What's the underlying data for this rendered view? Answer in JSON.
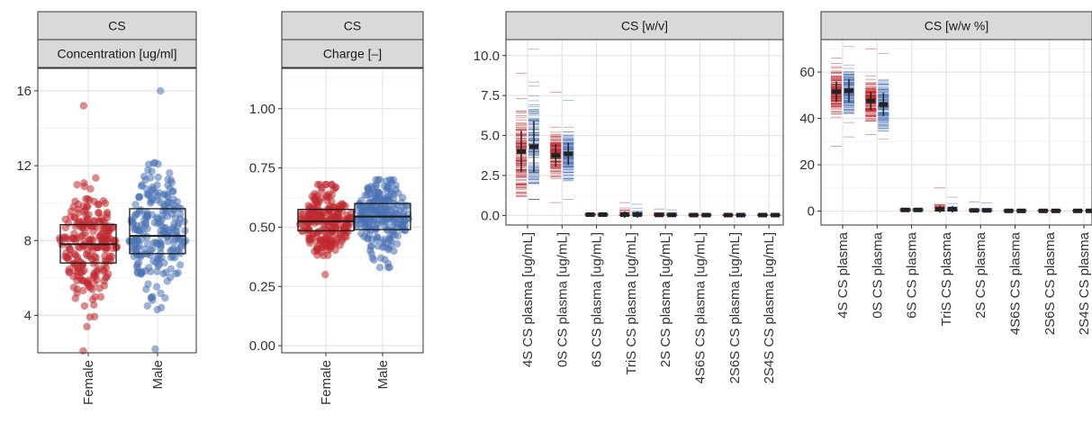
{
  "colors": {
    "female": "#c0282d",
    "male": "#4a72b5",
    "box": "#1a1a1a",
    "summary": "#222222"
  },
  "chart_data": [
    {
      "type": "box",
      "strip": [
        "CS",
        "Concentration [ug/ml]"
      ],
      "categories": [
        "Female",
        "Male"
      ],
      "ylim": [
        2,
        17.2
      ],
      "yticks": [
        "4",
        "8",
        "12",
        "16"
      ],
      "ytick_values": [
        4,
        8,
        12,
        16
      ],
      "grid": true,
      "series": [
        {
          "group": "Female",
          "box": {
            "q1": 6.8,
            "median": 7.8,
            "q3": 8.85
          },
          "min": 2.1,
          "max": 15.2
        },
        {
          "group": "Male",
          "box": {
            "q1": 7.3,
            "median": 8.25,
            "q3": 9.7
          },
          "min": 2.2,
          "max": 16.0
        }
      ]
    },
    {
      "type": "box",
      "strip": [
        "CS",
        "Charge [–]"
      ],
      "categories": [
        "Female",
        "Male"
      ],
      "ylim": [
        -0.03,
        1.17
      ],
      "yticks": [
        "0.00",
        "0.25",
        "0.50",
        "0.75",
        "1.00"
      ],
      "ytick_values": [
        0,
        0.25,
        0.5,
        0.75,
        1.0
      ],
      "grid": true,
      "series": [
        {
          "group": "Female",
          "box": {
            "q1": 0.485,
            "median": 0.525,
            "q3": 0.575
          },
          "min": 0.3,
          "max": 0.68
        },
        {
          "group": "Male",
          "box": {
            "q1": 0.49,
            "median": 0.545,
            "q3": 0.6
          },
          "min": 0.33,
          "max": 0.7
        }
      ]
    },
    {
      "type": "scatter",
      "strip": [
        "CS  [w/v]"
      ],
      "categories": [
        "4S CS plasma [ug/mL]",
        "0S CS plasma [ug/mL]",
        "6S CS plasma [ug/mL]",
        "TriS CS plasma [ug/mL]",
        "2S CS plasma [ug/mL]",
        "4S6S CS plasma [ug/mL]",
        "2S6S CS plasma [ug/mL]",
        "2S4S CS plasma [ug/mL]"
      ],
      "ylim": [
        -0.6,
        11.0
      ],
      "yticks": [
        "0.0",
        "2.5",
        "5.0",
        "7.5",
        "10.0"
      ],
      "ytick_values": [
        0,
        2.5,
        5.0,
        7.5,
        10.0
      ],
      "grid": true,
      "series": [
        {
          "name": "Female",
          "mean": [
            4.0,
            3.75,
            0.05,
            0.05,
            0.03,
            0.02,
            0.02,
            0.02
          ],
          "sd": [
            1.3,
            0.7,
            0.02,
            0.2,
            0.08,
            0.02,
            0.02,
            0.02
          ],
          "min": [
            1.2,
            0.8,
            0.0,
            0.0,
            0.0,
            0.0,
            0.0,
            0.0
          ],
          "max": [
            8.9,
            7.7,
            0.1,
            0.8,
            0.4,
            0.08,
            0.05,
            0.05
          ]
        },
        {
          "name": "Male",
          "mean": [
            4.3,
            3.85,
            0.05,
            0.05,
            0.03,
            0.02,
            0.02,
            0.02
          ],
          "sd": [
            1.6,
            0.7,
            0.02,
            0.2,
            0.08,
            0.02,
            0.02,
            0.02
          ],
          "min": [
            1.0,
            1.0,
            0.0,
            0.0,
            0.0,
            0.0,
            0.0,
            0.0
          ],
          "max": [
            10.4,
            7.2,
            0.1,
            0.7,
            0.35,
            0.08,
            0.05,
            0.05
          ]
        }
      ]
    },
    {
      "type": "scatter",
      "strip": [
        "CS  [w/w %]"
      ],
      "categories": [
        "4S CS plasma",
        "0S CS plasma",
        "6S CS plasma",
        "TriS CS plasma",
        "2S CS plasma",
        "4S6S CS plasma",
        "2S6S CS plasma",
        "2S4S CS plasma"
      ],
      "ylim": [
        -6.0,
        74.0
      ],
      "yticks": [
        "0",
        "20",
        "40",
        "60"
      ],
      "ytick_values": [
        0,
        20,
        40,
        60
      ],
      "grid": true,
      "series": [
        {
          "name": "Female",
          "mean": [
            51.5,
            47.5,
            0.5,
            0.8,
            0.3,
            0.1,
            0.1,
            0.1
          ],
          "sd": [
            4.5,
            4.0,
            0.2,
            1.5,
            0.6,
            0.1,
            0.1,
            0.1
          ],
          "min": [
            28.0,
            33.0,
            0.0,
            0.0,
            0.0,
            0.0,
            0.0,
            0.0
          ],
          "max": [
            66.0,
            70.0,
            1.2,
            10.0,
            4.0,
            0.5,
            0.5,
            0.5
          ]
        },
        {
          "name": "Male",
          "mean": [
            52.0,
            46.0,
            0.5,
            0.8,
            0.3,
            0.1,
            0.1,
            0.1
          ],
          "sd": [
            5.0,
            5.0,
            0.2,
            1.4,
            0.6,
            0.1,
            0.1,
            0.1
          ],
          "min": [
            32.0,
            31.0,
            0.0,
            0.0,
            0.0,
            0.0,
            0.0,
            0.0
          ],
          "max": [
            71.0,
            68.0,
            1.2,
            6.0,
            3.5,
            0.5,
            0.5,
            0.5
          ]
        }
      ]
    }
  ]
}
